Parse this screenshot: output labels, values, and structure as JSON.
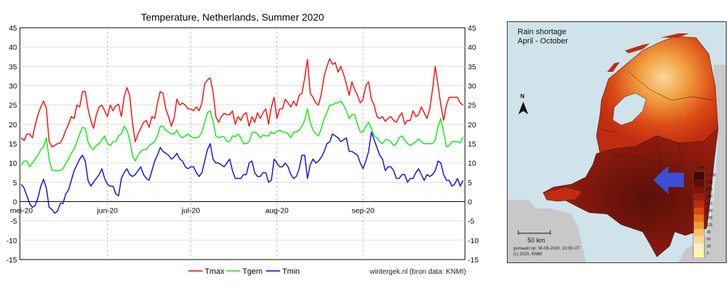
{
  "chart_data": {
    "type": "line",
    "title": "Temperature, Netherlands, Summer 2020",
    "ylim": [
      -15,
      45
    ],
    "yticks": [
      -15,
      -10,
      -5,
      0,
      5,
      10,
      15,
      20,
      25,
      30,
      35,
      40,
      45
    ],
    "x_range": [
      "2020-05-01",
      "2020-09-30"
    ],
    "xticks": [
      {
        "label": "mei-20",
        "date": "2020-05-01"
      },
      {
        "label": "jun-20",
        "date": "2020-06-01"
      },
      {
        "label": "jul-20",
        "date": "2020-07-01"
      },
      {
        "label": "aug-20",
        "date": "2020-08-01"
      },
      {
        "label": "sep-20",
        "date": "2020-09-01"
      }
    ],
    "grid": true,
    "legend_position": "bottom",
    "source": "wintergek.nl (bron data: KNMI)",
    "series": [
      {
        "name": "Tmax",
        "color": "#ff0000",
        "start_date": "2020-05-01",
        "values": [
          16.5,
          15.8,
          17.5,
          17.5,
          16.5,
          19.8,
          22.5,
          24.5,
          26,
          24.2,
          15.5,
          14.2,
          14.5,
          15,
          15.2,
          16.5,
          18.5,
          20,
          22,
          21.5,
          25,
          24.5,
          28.5,
          28.5,
          24,
          21,
          19,
          22.5,
          24.5,
          25,
          23.5,
          22,
          25,
          23.5,
          24.8,
          25.2,
          22,
          27,
          29.5,
          27.5,
          20.5,
          15.5,
          17.5,
          19,
          20.5,
          21,
          19.2,
          22,
          21.5,
          25.5,
          28.5,
          28,
          24,
          22,
          19.5,
          21.5,
          26.5,
          25,
          25.5,
          25,
          24,
          24,
          23.5,
          24.5,
          23.5,
          25.5,
          30.5,
          31.5,
          32,
          28.5,
          22,
          20.5,
          22,
          22.8,
          22.5,
          22.5,
          23.5,
          20,
          22,
          21,
          22.5,
          23,
          19.5,
          22,
          20.5,
          23,
          21.5,
          23,
          24,
          20,
          24.5,
          27,
          21.5,
          24,
          24,
          26.5,
          25.5,
          24.5,
          26,
          24.8,
          27.5,
          28,
          32,
          36.8,
          28,
          27,
          25.5,
          25,
          28,
          32.5,
          35,
          37,
          35.5,
          36,
          33.5,
          35,
          33,
          30.5,
          27.5,
          31,
          29,
          27.5,
          25.5,
          26.5,
          30,
          31,
          26.5,
          25,
          22,
          21.5,
          22,
          20.8,
          21.5,
          22,
          21,
          20.5,
          22,
          23,
          20,
          21,
          21,
          23.5,
          22,
          22.5,
          24.5,
          23,
          21.5,
          24,
          29,
          35,
          30,
          25,
          21,
          25,
          27,
          27,
          27,
          27,
          25.5,
          25
        ]
      },
      {
        "name": "Tgem",
        "color": "#00ee00",
        "start_date": "2020-05-01",
        "values": [
          9.5,
          10.5,
          10.5,
          9,
          10,
          11,
          12,
          13.5,
          14.2,
          16.5,
          11,
          8.2,
          8,
          8,
          8,
          8.5,
          9.8,
          11,
          12.5,
          13.5,
          15.5,
          17.5,
          19.2,
          19,
          15.5,
          14,
          13.5,
          14.5,
          15,
          16,
          17,
          15,
          14.5,
          15.5,
          15.5,
          17,
          17.5,
          19.5,
          18.5,
          16,
          12,
          10.5,
          12,
          13,
          13.5,
          13.5,
          14.5,
          15,
          15.5,
          17,
          19.5,
          19.5,
          18.5,
          18,
          17.5,
          17.5,
          18.5,
          17,
          16.5,
          17,
          17.5,
          16.8,
          16.5,
          16.5,
          16.8,
          18,
          20.5,
          23,
          23.5,
          21,
          17,
          16.5,
          16.8,
          16.8,
          15.5,
          15.5,
          17,
          16.8,
          17.5,
          16.5,
          15,
          15,
          15.5,
          17.8,
          18,
          17.5,
          16.5,
          17.2,
          17,
          17,
          18,
          17.5,
          18.2,
          18.5,
          18,
          18,
          17.5,
          16.5,
          18,
          18,
          18.5,
          19.5,
          21,
          24,
          20.5,
          18.5,
          17.5,
          17,
          19,
          21.5,
          23,
          25,
          25,
          25.5,
          25.5,
          26,
          25,
          23.5,
          21.5,
          22.5,
          22.5,
          20,
          18,
          18,
          19.5,
          20.5,
          19,
          17,
          16.5,
          15.5,
          15,
          16,
          16,
          15.5,
          14.5,
          15,
          16.5,
          17,
          16,
          15,
          14.5,
          15,
          15.5,
          16.2,
          15.5,
          15,
          15,
          15,
          15,
          16,
          19.5,
          21.5,
          18,
          14.2,
          14.5,
          15.5,
          15.5,
          15.5,
          15.2,
          16.7
        ]
      },
      {
        "name": "Tmin",
        "color": "#0000ff",
        "start_date": "2020-05-01",
        "values": [
          4.5,
          3.5,
          1.5,
          -0.5,
          -1.5,
          -1,
          1,
          4,
          5.8,
          3.5,
          -1.5,
          -2,
          -3,
          -2.5,
          -0.5,
          -0.5,
          2,
          3,
          5.5,
          8,
          9.5,
          11,
          12,
          10.5,
          5.5,
          4,
          5,
          6,
          7,
          8.5,
          6,
          4.5,
          4,
          4,
          2,
          1.5,
          6,
          7.5,
          8.5,
          7,
          6.5,
          7,
          8,
          9,
          7,
          6,
          5.5,
          8,
          10.5,
          12,
          14,
          13,
          12.5,
          12,
          11,
          11.5,
          12.5,
          11,
          10.5,
          9,
          8.5,
          9,
          9,
          7.5,
          6.5,
          7.5,
          10.5,
          13.5,
          15,
          11,
          10,
          10,
          9.5,
          9,
          10,
          11,
          8,
          6,
          6,
          6,
          7,
          7,
          10,
          10.5,
          7.5,
          6.5,
          6.5,
          7.5,
          7.5,
          5,
          5.5,
          11,
          10,
          9,
          9,
          10,
          9,
          7,
          6,
          6.5,
          8.5,
          12,
          12,
          6,
          9.5,
          11,
          10,
          10.5,
          11.5,
          13,
          15,
          15.5,
          17.5,
          17,
          16.5,
          15.5,
          16,
          16.5,
          13,
          13,
          12.5,
          12,
          10,
          8.5,
          10.5,
          13,
          18,
          16,
          14,
          12,
          11,
          8,
          9,
          9,
          8,
          6,
          6,
          7,
          7,
          5,
          6,
          6,
          7.5,
          8.5,
          7,
          5.5,
          7,
          6.5,
          7,
          8,
          10.5,
          10,
          7,
          5.5,
          5.5,
          4,
          4.5,
          6,
          4,
          5.5
        ]
      }
    ]
  },
  "map": {
    "title_line1": "Rain shortage",
    "title_line2": "April - October",
    "north_label": "N",
    "scale_label": "50 km",
    "footer_line1": "gemaakt op: 30-09-2020, 10:35 UT",
    "footer_line2": "(c) 2020, KNMI",
    "legend_unit": "mm",
    "legend": [
      {
        "label": "> 300",
        "color": "#3a0a06"
      },
      {
        "label": "300",
        "color": "#5a0f09"
      },
      {
        "label": "270",
        "color": "#7a160c"
      },
      {
        "label": "240",
        "color": "#9e1e0e"
      },
      {
        "label": "210",
        "color": "#c02c10"
      },
      {
        "label": "180",
        "color": "#da4a14"
      },
      {
        "label": "150",
        "color": "#e8701e"
      },
      {
        "label": "120",
        "color": "#f09a3c"
      },
      {
        "label": "90",
        "color": "#f5bf6a"
      },
      {
        "label": "60",
        "color": "#f8da98"
      },
      {
        "label": "30",
        "color": "#fbedc4"
      },
      {
        "label": "0",
        "color": "#fff7a0"
      }
    ]
  }
}
